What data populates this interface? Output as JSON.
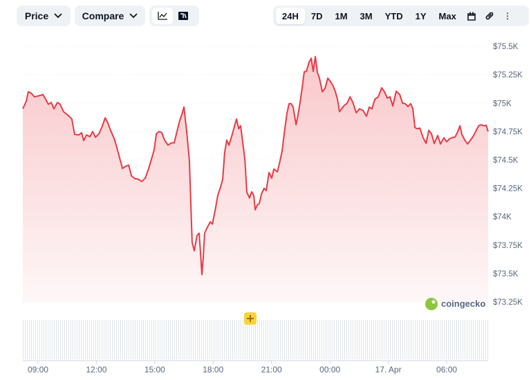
{
  "toolbar": {
    "price": "Price",
    "compare": "Compare",
    "ranges": [
      "24H",
      "7D",
      "1M",
      "3M",
      "YTD",
      "1Y",
      "Max"
    ]
  },
  "chart_data": {
    "type": "line",
    "color": "#ea3943",
    "grid": true,
    "watermark": "coingecko",
    "x": [
      8.22,
      8.4,
      8.5,
      8.64,
      8.82,
      9.04,
      9.25,
      9.39,
      9.53,
      9.68,
      9.82,
      10.0,
      10.14,
      10.31,
      10.53,
      10.74,
      10.88,
      11.1,
      11.24,
      11.35,
      11.49,
      11.67,
      11.81,
      11.95,
      12.13,
      12.3,
      12.45,
      12.59,
      12.73,
      12.91,
      13.05,
      13.19,
      13.34,
      13.51,
      13.66,
      13.8,
      13.98,
      14.15,
      14.33,
      14.51,
      14.69,
      14.86,
      14.97,
      15.08,
      15.22,
      15.36,
      15.5,
      15.68,
      15.86,
      16.0,
      16.14,
      16.29,
      16.39,
      16.5,
      16.64,
      16.78,
      16.92,
      17.03,
      17.17,
      17.28,
      17.35,
      17.42,
      17.49,
      17.56,
      17.71,
      17.85,
      17.96,
      18.13,
      18.24,
      18.38,
      18.49,
      18.59,
      18.7,
      18.81,
      18.95,
      19.09,
      19.2,
      19.31,
      19.41,
      19.55,
      19.63,
      19.73,
      19.87,
      19.98,
      20.09,
      20.16,
      20.27,
      20.37,
      20.48,
      20.62,
      20.73,
      20.87,
      21.01,
      21.12,
      21.3,
      21.44,
      21.54,
      21.69,
      21.79,
      21.9,
      22.01,
      22.11,
      22.26,
      22.36,
      22.47,
      22.58,
      22.68,
      22.79,
      22.93,
      23.04,
      23.14,
      23.25,
      23.36,
      23.46,
      23.61,
      23.75,
      23.89,
      24.03,
      24.17,
      24.28,
      24.39,
      24.49,
      24.6,
      24.74,
      24.89,
      25.03,
      25.17,
      25.35,
      25.52,
      25.7,
      25.88,
      26.02,
      26.16,
      26.31,
      26.48,
      26.66,
      26.8,
      26.95,
      27.09,
      27.23,
      27.41,
      27.59,
      27.73,
      27.87,
      28.01,
      28.15,
      28.26,
      28.37,
      28.47,
      28.62,
      28.79,
      28.94,
      29.08,
      29.22,
      29.36,
      29.54,
      29.68,
      29.86,
      30.0,
      30.14,
      30.32,
      30.43,
      30.57,
      30.68,
      30.78,
      30.93,
      31.07,
      31.21,
      31.35,
      31.49,
      31.64,
      31.78,
      31.92,
      32.03,
      32.13
    ],
    "values": [
      74950,
      75020,
      75100,
      75090,
      75055,
      75065,
      75075,
      75035,
      74990,
      75005,
      74950,
      75005,
      74990,
      74925,
      74895,
      74860,
      74725,
      74720,
      74740,
      74670,
      74720,
      74705,
      74750,
      74700,
      74730,
      74795,
      74870,
      74825,
      74760,
      74690,
      74610,
      74520,
      74425,
      74445,
      74455,
      74360,
      74335,
      74330,
      74310,
      74340,
      74425,
      74525,
      74590,
      74730,
      74750,
      74740,
      74675,
      74630,
      74650,
      74650,
      74750,
      74850,
      74900,
      74965,
      74750,
      74495,
      73775,
      73700,
      73835,
      73855,
      73685,
      73490,
      73635,
      73855,
      73910,
      73955,
      73935,
      74080,
      74190,
      74260,
      74330,
      74565,
      74675,
      74630,
      74705,
      74795,
      74860,
      74775,
      74800,
      74615,
      74505,
      74215,
      74165,
      74220,
      74185,
      74060,
      74105,
      74115,
      74200,
      74250,
      74230,
      74390,
      74340,
      74420,
      74395,
      74495,
      74575,
      74780,
      74910,
      74995,
      74995,
      74965,
      74810,
      74895,
      75010,
      75145,
      75275,
      75280,
      75360,
      75395,
      75280,
      75410,
      75270,
      75220,
      75100,
      75130,
      75220,
      75190,
      75150,
      75100,
      75035,
      74925,
      74950,
      74980,
      75000,
      75055,
      75010,
      74915,
      74950,
      74935,
      74885,
      74965,
      74950,
      75035,
      75055,
      75135,
      75100,
      75045,
      75055,
      74975,
      75105,
      75075,
      75000,
      74995,
      74970,
      74995,
      74950,
      74785,
      74775,
      74780,
      74695,
      74645,
      74760,
      74730,
      74645,
      74715,
      74640,
      74695,
      74660,
      74685,
      74700,
      74700,
      74750,
      74800,
      74725,
      74675,
      74640,
      74670,
      74705,
      74750,
      74800,
      74810,
      74800,
      74805,
      74750
    ],
    "xlim": [
      8.22,
      32.13
    ],
    "xticks": [
      {
        "value": 9,
        "label": "09:00"
      },
      {
        "value": 12,
        "label": "12:00"
      },
      {
        "value": 15,
        "label": "15:00"
      },
      {
        "value": 18,
        "label": "18:00"
      },
      {
        "value": 21,
        "label": "21:00"
      },
      {
        "value": 24,
        "label": "00:00"
      },
      {
        "value": 27,
        "label": "17. Apr"
      },
      {
        "value": 30,
        "label": "06:00"
      }
    ],
    "ylim": [
      73250,
      75600
    ],
    "yticks": [
      {
        "value": 73250,
        "label": "$73.25K"
      },
      {
        "value": 73500,
        "label": "$73.5K"
      },
      {
        "value": 73750,
        "label": "$73.75K"
      },
      {
        "value": 74000,
        "label": "$74K"
      },
      {
        "value": 74250,
        "label": "$74.25K"
      },
      {
        "value": 74500,
        "label": "$74.5K"
      },
      {
        "value": 74750,
        "label": "$74.75K"
      },
      {
        "value": 75000,
        "label": "$75K"
      },
      {
        "value": 75250,
        "label": "$75.25K"
      },
      {
        "value": 75500,
        "label": "$75.5K"
      }
    ]
  }
}
